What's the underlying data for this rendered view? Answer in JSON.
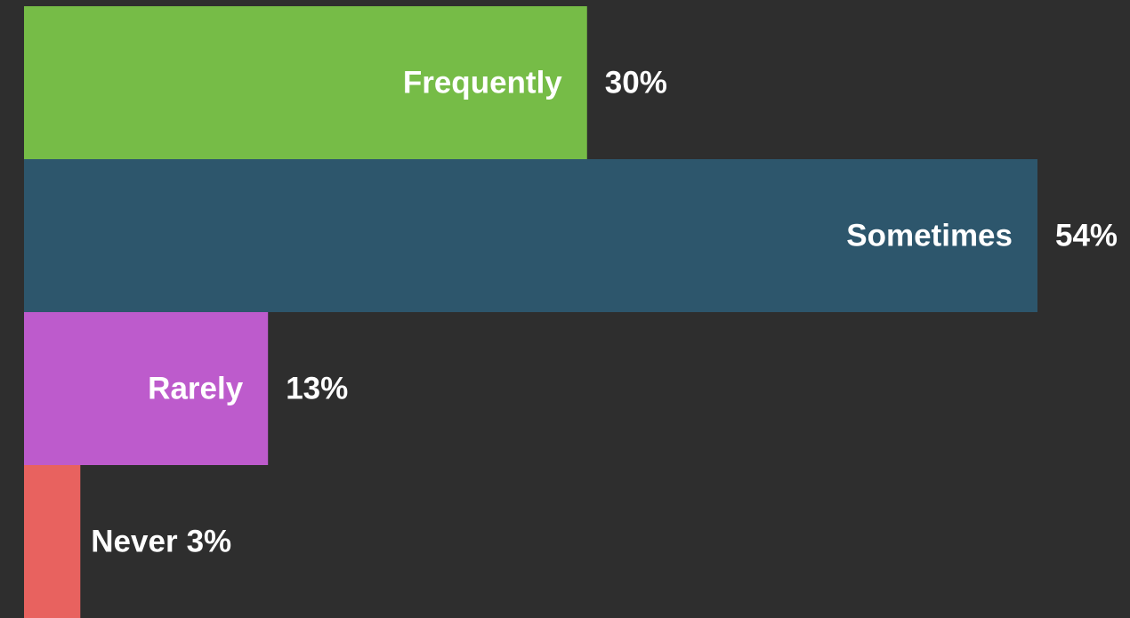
{
  "chart_data": {
    "type": "bar",
    "orientation": "horizontal",
    "categories": [
      "Frequently",
      "Sometimes",
      "Rarely",
      "Never"
    ],
    "values": [
      30,
      54,
      13,
      3
    ],
    "value_labels": [
      "30%",
      "54%",
      "13%",
      "3%"
    ],
    "colors": [
      "#76bc47",
      "#2d566c",
      "#bd5bcc",
      "#e8625f"
    ]
  }
}
